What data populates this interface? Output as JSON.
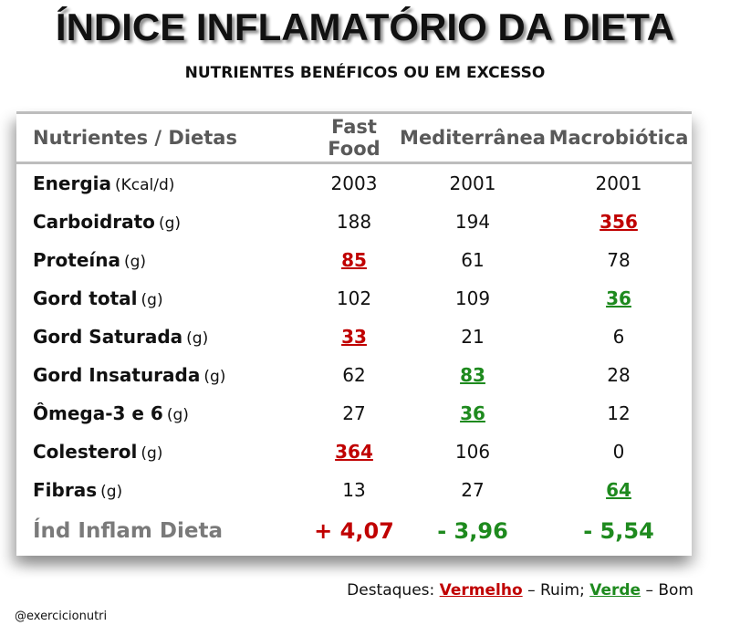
{
  "title": "ÍNDICE INFLAMATÓRIO DA DIETA",
  "subtitle": "NUTRIENTES BENÉFICOS OU EM EXCESSO",
  "table": {
    "headers": [
      "Nutrientes / Dietas",
      "Fast Food",
      "Mediterrânea",
      "Macrobiótica"
    ],
    "rows": [
      {
        "name": "Energia",
        "unit": "(Kcal/d)",
        "values": [
          "2003",
          "2001",
          "2001"
        ],
        "highlight": [
          "",
          "",
          ""
        ]
      },
      {
        "name": "Carboidrato",
        "unit": "(g)",
        "values": [
          "188",
          "194",
          "356"
        ],
        "highlight": [
          "",
          "",
          "red"
        ]
      },
      {
        "name": "Proteína",
        "unit": "(g)",
        "values": [
          "85",
          "61",
          "78"
        ],
        "highlight": [
          "red",
          "",
          ""
        ]
      },
      {
        "name": "Gord total",
        "unit": "(g)",
        "values": [
          "102",
          "109",
          "36"
        ],
        "highlight": [
          "",
          "",
          "green"
        ]
      },
      {
        "name": "Gord Saturada",
        "unit": "(g)",
        "values": [
          "33",
          "21",
          "6"
        ],
        "highlight": [
          "red",
          "",
          ""
        ]
      },
      {
        "name": "Gord Insaturada",
        "unit": "(g)",
        "values": [
          "62",
          "83",
          "28"
        ],
        "highlight": [
          "",
          "green",
          ""
        ]
      },
      {
        "name": "Ômega-3 e 6",
        "unit": "(g)",
        "values": [
          "27",
          "36",
          "12"
        ],
        "highlight": [
          "",
          "green",
          ""
        ]
      },
      {
        "name": "Colesterol",
        "unit": "(g)",
        "values": [
          "364",
          "106",
          "0"
        ],
        "highlight": [
          "red",
          "",
          ""
        ]
      },
      {
        "name": "Fibras",
        "unit": "(g)",
        "values": [
          "13",
          "27",
          "64"
        ],
        "highlight": [
          "",
          "",
          "green"
        ]
      }
    ],
    "total": {
      "name": "Índ Inflam Dieta",
      "values": [
        "+ 4,07",
        "- 3,96",
        "- 5,54"
      ],
      "highlight": [
        "red",
        "green",
        "green"
      ]
    }
  },
  "legend": {
    "prefix": "Destaques:",
    "red_label": "Vermelho",
    "red_meaning": "– Ruim;",
    "green_label": "Verde",
    "green_meaning": "– Bom"
  },
  "handle": "@exercicionutri",
  "colors": {
    "red": "#c00000",
    "green": "#1e8a1e",
    "header_gray": "#595959"
  }
}
